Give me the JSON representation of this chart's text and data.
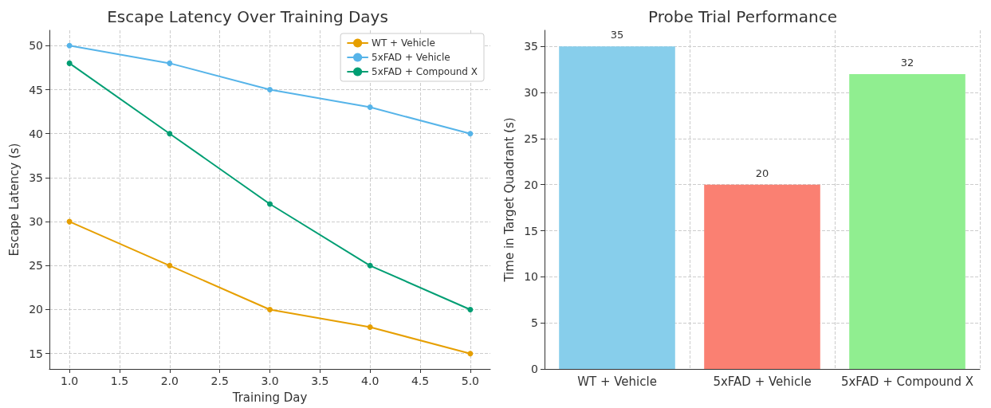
{
  "chart_data": [
    {
      "type": "line",
      "title": "Escape Latency Over Training Days",
      "xlabel": "Training Day",
      "ylabel": "Escape Latency (s)",
      "x": [
        1,
        2,
        3,
        4,
        5
      ],
      "series": [
        {
          "name": "WT + Vehicle",
          "color": "#e69f00",
          "values": [
            30,
            25,
            20,
            18,
            15
          ]
        },
        {
          "name": "5xFAD + Vehicle",
          "color": "#56b4e9",
          "values": [
            50,
            48,
            45,
            43,
            40
          ]
        },
        {
          "name": "5xFAD + Compound X",
          "color": "#009e73",
          "values": [
            48,
            40,
            32,
            25,
            20
          ]
        }
      ],
      "xlim": [
        0.8,
        5.2
      ],
      "xticks": [
        {
          "value": 1,
          "label": "1.0"
        },
        {
          "value": 1.5,
          "label": "1.5"
        },
        {
          "value": 2,
          "label": "2.0"
        },
        {
          "value": 2.5,
          "label": "2.5"
        },
        {
          "value": 3,
          "label": "3.0"
        },
        {
          "value": 3.5,
          "label": "3.5"
        },
        {
          "value": 4,
          "label": "4.0"
        },
        {
          "value": 4.5,
          "label": "4.5"
        },
        {
          "value": 5,
          "label": "5.0"
        }
      ],
      "ylim": [
        13.25,
        51.75
      ],
      "yticks": [
        15,
        20,
        25,
        30,
        35,
        40,
        45,
        50
      ],
      "grid": true,
      "legend": "top right",
      "marker": "circle",
      "line_style": "solid"
    },
    {
      "type": "bar",
      "title": "Probe Trial Performance",
      "ylabel": "Time in Target Quadrant (s)",
      "categories": [
        "WT + Vehicle",
        "5xFAD + Vehicle",
        "5xFAD + Compound X"
      ],
      "values": [
        35,
        20,
        32
      ],
      "colors": [
        "#87ceeb",
        "#fa8072",
        "#90ee90"
      ],
      "ylim": [
        0,
        36.75
      ],
      "yticks": [
        0,
        5,
        10,
        15,
        20,
        25,
        30,
        35
      ],
      "grid": true,
      "data_labels": true
    }
  ]
}
